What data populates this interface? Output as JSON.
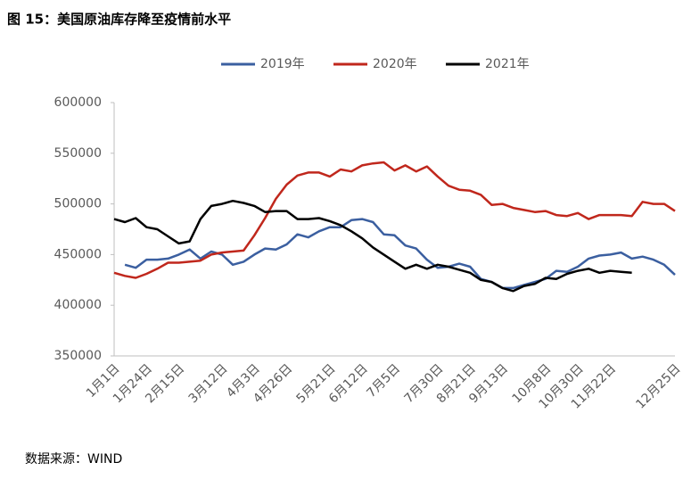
{
  "chart_data": {
    "type": "line",
    "title": "图 15：美国原油库存降至疫情前水平",
    "source": "数据来源：WIND",
    "categories": [
      "1月1日",
      null,
      null,
      "1月24日",
      null,
      null,
      "2月15日",
      null,
      null,
      null,
      "3月12日",
      null,
      null,
      "4月3日",
      null,
      null,
      "4月26日",
      null,
      null,
      null,
      "5月21日",
      null,
      null,
      "6月12日",
      null,
      null,
      "7月5日",
      null,
      null,
      null,
      "7月30日",
      null,
      null,
      "8月21日",
      null,
      null,
      "9月13日",
      null,
      null,
      null,
      "10月8日",
      null,
      null,
      "10月30日",
      null,
      null,
      "11月22日",
      null,
      null,
      null,
      null,
      null,
      "12月25日"
    ],
    "series": [
      {
        "name": "2019年",
        "color": "#3b5fa0",
        "values": [
          null,
          440000,
          437000,
          445000,
          445000,
          446000,
          450000,
          455000,
          446000,
          453000,
          450000,
          440000,
          443000,
          450000,
          456000,
          455000,
          460000,
          470000,
          467000,
          473000,
          477000,
          477000,
          484000,
          485000,
          482000,
          470000,
          469000,
          459000,
          456000,
          445000,
          437000,
          438000,
          441000,
          438000,
          426000,
          423000,
          417000,
          417000,
          420000,
          423000,
          426000,
          434000,
          433000,
          438000,
          446000,
          449000,
          450000,
          452000,
          446000,
          448000,
          445000,
          440000,
          430000
        ]
      },
      {
        "name": "2020年",
        "color": "#c0271c",
        "values": [
          432000,
          429000,
          427000,
          431000,
          436000,
          442000,
          442000,
          443000,
          444000,
          450000,
          452000,
          453000,
          454000,
          469000,
          486000,
          505000,
          519000,
          528000,
          531000,
          531000,
          527000,
          534000,
          532000,
          538000,
          540000,
          541000,
          533000,
          538000,
          532000,
          537000,
          527000,
          518000,
          514000,
          513000,
          509000,
          499000,
          500000,
          496000,
          494000,
          492000,
          493000,
          489000,
          488000,
          491000,
          485000,
          489000,
          489000,
          489000,
          488000,
          502000,
          500000,
          500000,
          493000
        ]
      },
      {
        "name": "2021年",
        "color": "#000000",
        "values": [
          485000,
          482000,
          486000,
          477000,
          475000,
          468000,
          461000,
          463000,
          485000,
          498000,
          500000,
          503000,
          501000,
          498000,
          492000,
          493000,
          493000,
          485000,
          485000,
          486000,
          483000,
          479000,
          473000,
          466000,
          457000,
          450000,
          443000,
          436000,
          440000,
          436000,
          440000,
          438000,
          435000,
          432000,
          425000,
          423000,
          417000,
          414000,
          419000,
          421000,
          427000,
          426000,
          431000,
          434000,
          436000,
          432000,
          434000,
          433000,
          432000,
          null,
          null,
          null,
          null
        ]
      }
    ],
    "ylim": [
      350000,
      600000
    ],
    "yticks": [
      350000,
      400000,
      450000,
      500000,
      550000,
      600000
    ]
  }
}
